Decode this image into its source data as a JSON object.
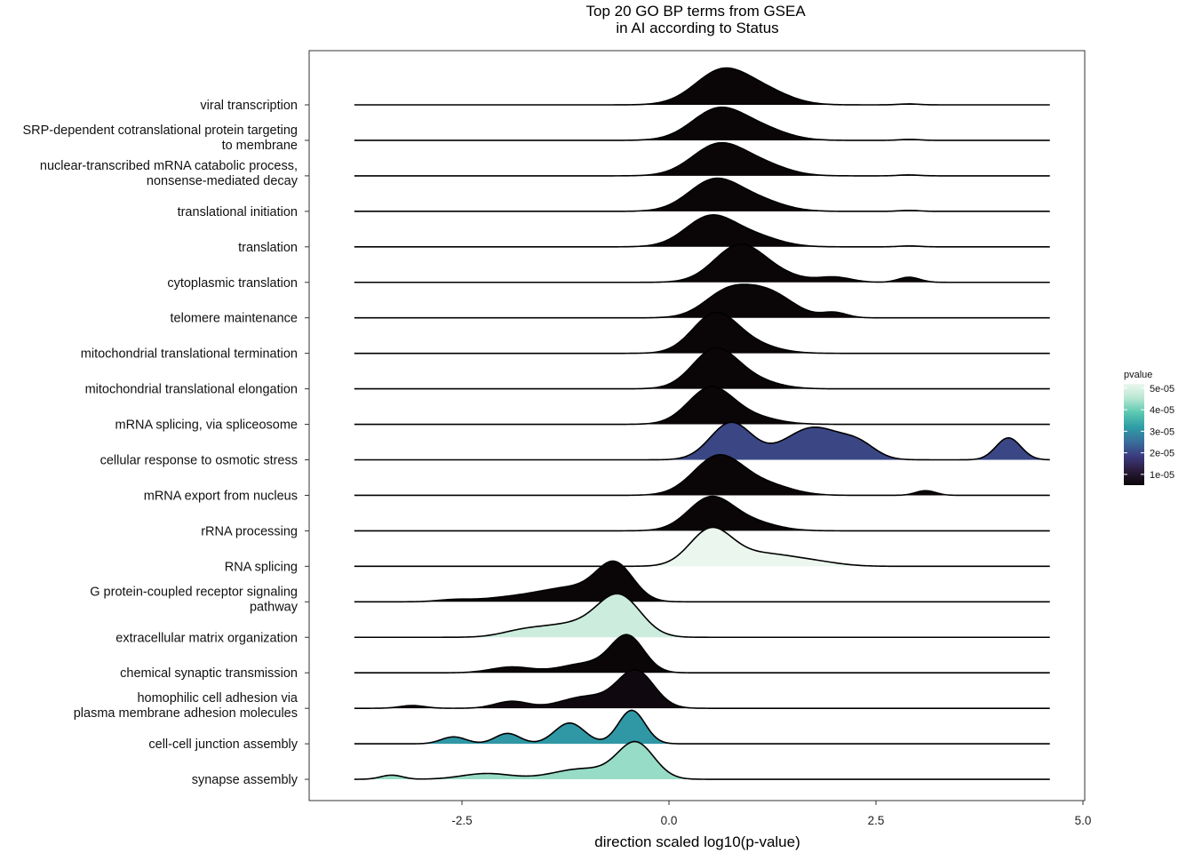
{
  "chart_data": {
    "type": "ridgeline",
    "title": "Top 20 GO BP terms from GSEA\nin AI according to Status",
    "xlabel": "direction scaled log10(p-value)",
    "ylabel": "",
    "xlim": [
      -4.3,
      5.0
    ],
    "xticks": [
      -2.5,
      0.0,
      2.5,
      5.0
    ],
    "xtick_labels": [
      "-2.5",
      "0.0",
      "2.5",
      "5.0"
    ],
    "grid": false,
    "legend": {
      "title": "pvalue",
      "position": "right",
      "ticks": [
        1e-05,
        2e-05,
        3e-05,
        4e-05,
        5e-05
      ],
      "tick_labels": [
        "1e-05",
        "2e-05",
        "3e-05",
        "4e-05",
        "5e-05"
      ],
      "range": [
        5e-06,
        5.2e-05
      ],
      "colors": [
        "#0a0607",
        "#2b1c3d",
        "#3b3b7e",
        "#3a6f9c",
        "#2e9da6",
        "#5ac8b0",
        "#b7e6d2",
        "#ebf7ee"
      ]
    },
    "categories": [
      "viral transcription",
      "SRP-dependent cotranslational protein targeting\nto membrane",
      "nuclear-transcribed mRNA catabolic process,\nnonsense-mediated decay",
      "translational initiation",
      "translation",
      "cytoplasmic translation",
      "telomere maintenance",
      "mitochondrial translational termination",
      "mitochondrial translational elongation",
      "mRNA splicing, via spliceosome",
      "cellular response to osmotic stress",
      "mRNA export from nucleus",
      "rRNA processing",
      "RNA splicing",
      "G protein-coupled receptor signaling\npathway",
      "extracellular matrix organization",
      "chemical synaptic transmission",
      "homophilic cell adhesion via\nplasma membrane adhesion molecules",
      "cell-cell junction assembly",
      "synapse assembly"
    ],
    "series": [
      {
        "pvalue": 1e-06,
        "x_range": [
          -3.8,
          4.6
        ],
        "peaks": [
          {
            "x": 0.65,
            "w": 0.33,
            "h": 1.5
          },
          {
            "x": 1.2,
            "w": 0.3,
            "h": 0.45
          },
          {
            "x": 2.9,
            "w": 0.12,
            "h": 0.04
          }
        ]
      },
      {
        "pvalue": 1e-06,
        "x_range": [
          -3.8,
          4.6
        ],
        "peaks": [
          {
            "x": 0.6,
            "w": 0.32,
            "h": 1.35
          },
          {
            "x": 1.15,
            "w": 0.3,
            "h": 0.4
          },
          {
            "x": 2.9,
            "w": 0.12,
            "h": 0.04
          }
        ]
      },
      {
        "pvalue": 1e-06,
        "x_range": [
          -3.8,
          4.6
        ],
        "peaks": [
          {
            "x": 0.6,
            "w": 0.32,
            "h": 1.35
          },
          {
            "x": 1.15,
            "w": 0.3,
            "h": 0.4
          },
          {
            "x": 2.9,
            "w": 0.12,
            "h": 0.04
          }
        ]
      },
      {
        "pvalue": 1e-06,
        "x_range": [
          -3.8,
          4.6
        ],
        "peaks": [
          {
            "x": 0.55,
            "w": 0.31,
            "h": 1.35
          },
          {
            "x": 1.1,
            "w": 0.3,
            "h": 0.4
          },
          {
            "x": 2.9,
            "w": 0.12,
            "h": 0.04
          }
        ]
      },
      {
        "pvalue": 1e-06,
        "x_range": [
          -3.8,
          4.6
        ],
        "peaks": [
          {
            "x": 0.5,
            "w": 0.3,
            "h": 1.3
          },
          {
            "x": 1.05,
            "w": 0.3,
            "h": 0.4
          },
          {
            "x": 2.9,
            "w": 0.12,
            "h": 0.04
          }
        ]
      },
      {
        "pvalue": 3e-06,
        "x_range": [
          -3.8,
          4.6
        ],
        "peaks": [
          {
            "x": 0.85,
            "w": 0.3,
            "h": 1.6
          },
          {
            "x": 1.35,
            "w": 0.28,
            "h": 0.25
          },
          {
            "x": 2.0,
            "w": 0.2,
            "h": 0.22
          },
          {
            "x": 2.9,
            "w": 0.13,
            "h": 0.22
          }
        ]
      },
      {
        "pvalue": 3e-06,
        "x_range": [
          -3.8,
          4.6
        ],
        "peaks": [
          {
            "x": 0.7,
            "w": 0.28,
            "h": 1.05
          },
          {
            "x": 1.2,
            "w": 0.3,
            "h": 1.05
          },
          {
            "x": 2.0,
            "w": 0.15,
            "h": 0.22
          }
        ]
      },
      {
        "pvalue": 1e-06,
        "x_range": [
          -3.8,
          4.6
        ],
        "peaks": [
          {
            "x": 0.55,
            "w": 0.27,
            "h": 1.65
          },
          {
            "x": 1.0,
            "w": 0.3,
            "h": 0.35
          }
        ]
      },
      {
        "pvalue": 1e-06,
        "x_range": [
          -3.8,
          4.6
        ],
        "peaks": [
          {
            "x": 0.55,
            "w": 0.27,
            "h": 1.65
          },
          {
            "x": 1.0,
            "w": 0.3,
            "h": 0.35
          }
        ]
      },
      {
        "pvalue": 1e-06,
        "x_range": [
          -3.8,
          4.6
        ],
        "peaks": [
          {
            "x": 0.5,
            "w": 0.27,
            "h": 1.55
          },
          {
            "x": 1.0,
            "w": 0.3,
            "h": 0.3
          }
        ]
      },
      {
        "pvalue": 2e-05,
        "x_range": [
          -3.8,
          4.6
        ],
        "peaks": [
          {
            "x": 0.75,
            "w": 0.25,
            "h": 1.6
          },
          {
            "x": 1.75,
            "w": 0.35,
            "h": 1.4
          },
          {
            "x": 2.3,
            "w": 0.2,
            "h": 0.5
          },
          {
            "x": 4.1,
            "w": 0.15,
            "h": 0.95
          }
        ]
      },
      {
        "pvalue": 3e-06,
        "x_range": [
          -3.8,
          4.6
        ],
        "peaks": [
          {
            "x": 0.6,
            "w": 0.3,
            "h": 1.7
          },
          {
            "x": 1.2,
            "w": 0.3,
            "h": 0.4
          },
          {
            "x": 3.1,
            "w": 0.12,
            "h": 0.2
          }
        ]
      },
      {
        "pvalue": 1e-06,
        "x_range": [
          -3.8,
          4.6
        ],
        "peaks": [
          {
            "x": 0.5,
            "w": 0.27,
            "h": 1.4
          },
          {
            "x": 1.0,
            "w": 0.3,
            "h": 0.35
          }
        ]
      },
      {
        "pvalue": 5.2e-05,
        "x_range": [
          -3.8,
          4.6
        ],
        "peaks": [
          {
            "x": 0.5,
            "w": 0.25,
            "h": 1.45
          },
          {
            "x": 1.1,
            "w": 0.45,
            "h": 0.55
          },
          {
            "x": 1.8,
            "w": 0.3,
            "h": 0.1
          }
        ]
      },
      {
        "pvalue": 1e-06,
        "x_range": [
          -3.8,
          4.6
        ],
        "peaks": [
          {
            "x": -0.65,
            "w": 0.22,
            "h": 1.55
          },
          {
            "x": -1.15,
            "w": 0.35,
            "h": 0.55
          },
          {
            "x": -1.8,
            "w": 0.4,
            "h": 0.22
          },
          {
            "x": -2.6,
            "w": 0.2,
            "h": 0.08
          }
        ]
      },
      {
        "pvalue": 4.8e-05,
        "x_range": [
          -3.8,
          4.6
        ],
        "peaks": [
          {
            "x": -0.6,
            "w": 0.26,
            "h": 1.7
          },
          {
            "x": -1.2,
            "w": 0.4,
            "h": 0.55
          },
          {
            "x": -1.8,
            "w": 0.25,
            "h": 0.18
          }
        ]
      },
      {
        "pvalue": 1e-06,
        "x_range": [
          -3.8,
          4.6
        ],
        "peaks": [
          {
            "x": -0.5,
            "w": 0.2,
            "h": 1.55
          },
          {
            "x": -1.0,
            "w": 0.3,
            "h": 0.4
          },
          {
            "x": -1.9,
            "w": 0.25,
            "h": 0.25
          }
        ]
      },
      {
        "pvalue": 6e-06,
        "x_range": [
          -3.8,
          4.6
        ],
        "peaks": [
          {
            "x": -0.4,
            "w": 0.22,
            "h": 1.6
          },
          {
            "x": -1.0,
            "w": 0.3,
            "h": 0.5
          },
          {
            "x": -1.9,
            "w": 0.2,
            "h": 0.3
          },
          {
            "x": -3.1,
            "w": 0.15,
            "h": 0.12
          }
        ]
      },
      {
        "pvalue": 3.1e-05,
        "x_range": [
          -3.8,
          4.6
        ],
        "peaks": [
          {
            "x": -0.45,
            "w": 0.16,
            "h": 1.45
          },
          {
            "x": -1.2,
            "w": 0.18,
            "h": 0.9
          },
          {
            "x": -1.95,
            "w": 0.15,
            "h": 0.45
          },
          {
            "x": -2.6,
            "w": 0.15,
            "h": 0.3
          }
        ]
      },
      {
        "pvalue": 4.3e-05,
        "x_range": [
          -3.8,
          4.6
        ],
        "peaks": [
          {
            "x": -0.4,
            "w": 0.22,
            "h": 1.55
          },
          {
            "x": -1.05,
            "w": 0.35,
            "h": 0.45
          },
          {
            "x": -2.2,
            "w": 0.3,
            "h": 0.25
          },
          {
            "x": -3.35,
            "w": 0.13,
            "h": 0.18
          }
        ]
      }
    ]
  }
}
